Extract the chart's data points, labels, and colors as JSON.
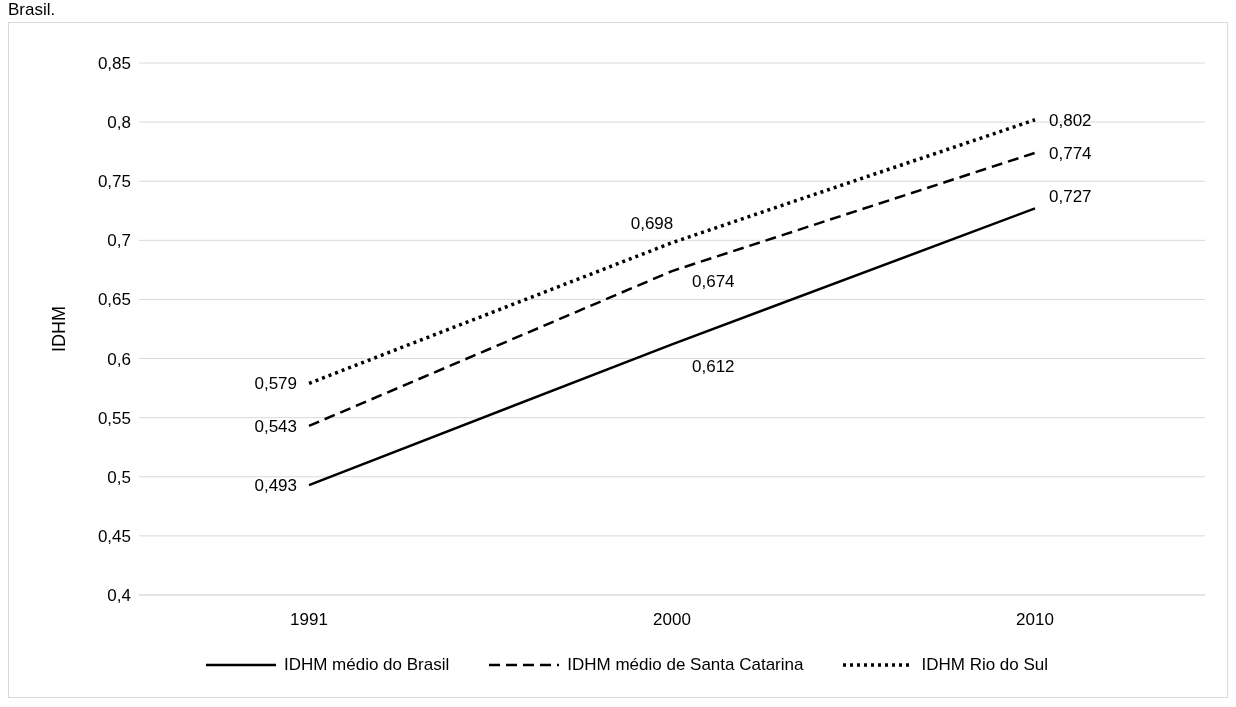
{
  "chart_data": {
    "type": "line",
    "ylabel": "IDHM",
    "annotations": [
      "Brasil."
    ],
    "categories": [
      "1991",
      "2000",
      "2010"
    ],
    "series": [
      {
        "name": "IDHM médio do Brasil",
        "color": "#000000",
        "line_style": "solid",
        "values": [
          0.493,
          0.612,
          0.727
        ],
        "value_labels": [
          "0,493",
          "0,612",
          "0,727"
        ]
      },
      {
        "name": "IDHM médio de Santa Catarina",
        "color": "#000000",
        "line_style": "dashed",
        "values": [
          0.543,
          0.674,
          0.774
        ],
        "value_labels": [
          "0,543",
          "0,674",
          "0,774"
        ]
      },
      {
        "name": "IDHM Rio do Sul",
        "color": "#000000",
        "line_style": "dotted",
        "values": [
          0.579,
          0.698,
          0.802
        ],
        "value_labels": [
          "0,579",
          "0,698",
          "0,802"
        ]
      }
    ],
    "ylim": [
      0.4,
      0.85
    ],
    "yticks": [
      {
        "value": 0.4,
        "label": "0,4"
      },
      {
        "value": 0.45,
        "label": "0,45"
      },
      {
        "value": 0.5,
        "label": "0,5"
      },
      {
        "value": 0.55,
        "label": "0,55"
      },
      {
        "value": 0.6,
        "label": "0,6"
      },
      {
        "value": 0.65,
        "label": "0,65"
      },
      {
        "value": 0.7,
        "label": "0,7"
      },
      {
        "value": 0.75,
        "label": "0,75"
      },
      {
        "value": 0.8,
        "label": "0,8"
      },
      {
        "value": 0.85,
        "label": "0,85"
      }
    ],
    "grid": "y",
    "legend": "bottom",
    "marker": "none"
  }
}
